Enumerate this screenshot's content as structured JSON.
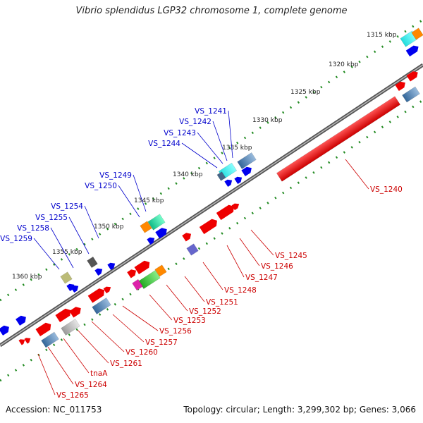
{
  "title": "Vibrio splendidus LGP32 chromosome 1, complete genome",
  "footer": {
    "accession": "Accession: NC_011753",
    "summary": "Topology: circular; Length: 3,299,302 bp; Genes: 3,066"
  },
  "colors": {
    "backbone": "#777777",
    "tick": "#228b22",
    "label_upper": "#0000cc",
    "label_lower": "#cc0000",
    "gene_red": "#ee0000",
    "gene_blue": "#0000ee"
  },
  "scale_labels": [
    "1315 kbp",
    "1320 kbp",
    "1325 kbp",
    "1330 kbp",
    "1335 kbp",
    "1340 kbp",
    "1345 kbp",
    "1350 kbp",
    "1355 kbp",
    "1360 kbp"
  ],
  "upper_genes": [
    "VS_1241",
    "VS_1242",
    "VS_1243",
    "VS_1244",
    "VS_1249",
    "VS_1250",
    "VS_1254",
    "VS_1255",
    "VS_1258",
    "VS_1259"
  ],
  "lower_genes": [
    "VS_1240",
    "VS_1245",
    "VS_1246",
    "VS_1247",
    "VS_1248",
    "VS_1251",
    "VS_1252",
    "VS_1253",
    "VS_1256",
    "VS_1257",
    "VS_1260",
    "VS_1261",
    "tnaA",
    "VS_1264",
    "VS_1265"
  ]
}
